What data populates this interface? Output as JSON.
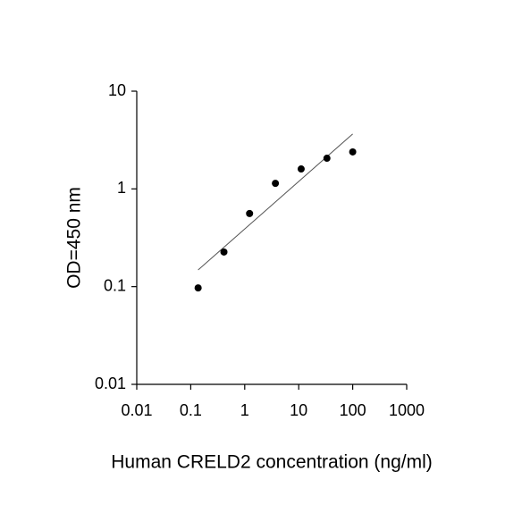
{
  "chart_data": {
    "type": "scatter",
    "x_label": "Human CRELD2 concentration (ng/ml)",
    "y_label": "OD=450 nm",
    "x": [
      0.137,
      0.412,
      1.23,
      3.7,
      11.1,
      33.3,
      100
    ],
    "values": [
      0.097,
      0.226,
      0.56,
      1.14,
      1.6,
      2.06,
      2.39
    ],
    "color": "#000000",
    "fit_line": {
      "x": [
        0.137,
        100
      ],
      "y": [
        0.148,
        3.65
      ],
      "color": "#555555"
    },
    "x_log": true,
    "y_log": true,
    "xlim": [
      0.01,
      1000
    ],
    "xticks": [
      0.01,
      0.1,
      1,
      10,
      100,
      1000
    ],
    "ylim": [
      0.01,
      10
    ],
    "yticks": [
      0.01,
      0.1,
      1,
      10
    ]
  }
}
